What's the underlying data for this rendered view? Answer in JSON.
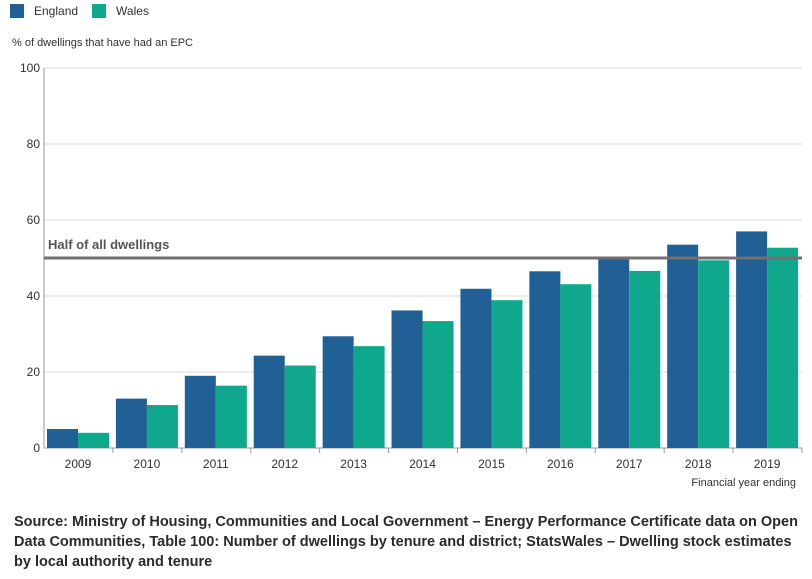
{
  "legend": {
    "england": "England",
    "wales": "Wales"
  },
  "colors": {
    "england": "#206095",
    "wales": "#0fa88c",
    "reference_line": "#707070",
    "grid": "#d9d9d9"
  },
  "source": "Source: Ministry of Housing, Communities and Local Government – Energy Performance Certificate data on Open Data Communities, Table 100: Number of dwellings by tenure and district; StatsWales – Dwelling stock estimates by local authority and tenure",
  "chart_data": {
    "type": "bar",
    "ylabel": "% of dwellings that have had an EPC",
    "xlabel": "Financial year ending",
    "ylim": [
      0,
      100
    ],
    "yticks": [
      0,
      20,
      40,
      60,
      80,
      100
    ],
    "grid": true,
    "legend_position": "top-left",
    "categories": [
      "2009",
      "2010",
      "2011",
      "2012",
      "2013",
      "2014",
      "2015",
      "2016",
      "2017",
      "2018",
      "2019"
    ],
    "series": [
      {
        "name": "England",
        "values": [
          5.0,
          13.0,
          19.0,
          24.3,
          29.4,
          36.2,
          41.9,
          46.5,
          50.3,
          53.5,
          57.0
        ]
      },
      {
        "name": "Wales",
        "values": [
          4.0,
          11.3,
          16.4,
          21.7,
          26.8,
          33.4,
          38.9,
          43.1,
          46.6,
          49.4,
          52.7
        ]
      }
    ],
    "reference_line": {
      "value": 50,
      "label": "Half of all dwellings"
    }
  }
}
